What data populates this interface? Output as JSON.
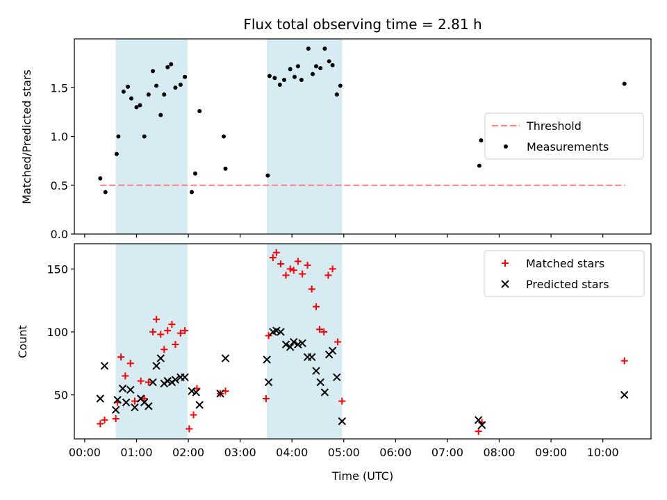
{
  "chart_data": [
    {
      "type": "scatter",
      "title": "Flux total observing time = 2.81 h",
      "xlabel": "",
      "ylabel": "Matched/Predicted stars",
      "xlim_hours": [
        -0.2,
        10.93
      ],
      "ylim": [
        0,
        2.0
      ],
      "yticks": [
        0.0,
        0.5,
        1.0,
        1.5
      ],
      "ytick_labels": [
        "0.0",
        "0.5",
        "1.0",
        "1.5"
      ],
      "grid": false,
      "legend_placement": "center-right",
      "shaded_intervals": [
        {
          "start": "00:36",
          "end": "01:59"
        },
        {
          "start": "03:31",
          "end": "04:58"
        }
      ],
      "threshold": {
        "name": "Threshold",
        "value": 0.5,
        "x_start": "00:18",
        "x_end": "10:26",
        "color": "#ff7f7f",
        "style": "dashed"
      },
      "series": [
        {
          "name": "Measurements",
          "color": "#000000",
          "marker": "dot",
          "points": [
            [
              "00:18",
              0.57
            ],
            [
              "00:24",
              0.43
            ],
            [
              "00:37",
              0.82
            ],
            [
              "00:39",
              1.0
            ],
            [
              "00:45",
              1.46
            ],
            [
              "00:50",
              1.51
            ],
            [
              "00:54",
              1.39
            ],
            [
              "01:00",
              1.3
            ],
            [
              "01:04",
              1.32
            ],
            [
              "01:09",
              1.0
            ],
            [
              "01:14",
              1.43
            ],
            [
              "01:19",
              1.67
            ],
            [
              "01:23",
              1.52
            ],
            [
              "01:28",
              1.22
            ],
            [
              "01:32",
              1.43
            ],
            [
              "01:36",
              1.71
            ],
            [
              "01:40",
              1.74
            ],
            [
              "01:45",
              1.5
            ],
            [
              "01:51",
              1.53
            ],
            [
              "01:56",
              1.61
            ],
            [
              "02:04",
              0.43
            ],
            [
              "02:08",
              0.62
            ],
            [
              "02:13",
              1.26
            ],
            [
              "02:41",
              1.0
            ],
            [
              "02:43",
              0.67
            ],
            [
              "03:32",
              0.6
            ],
            [
              "03:34",
              1.62
            ],
            [
              "03:40",
              1.6
            ],
            [
              "03:46",
              1.53
            ],
            [
              "03:51",
              1.58
            ],
            [
              "03:58",
              1.69
            ],
            [
              "04:03",
              1.61
            ],
            [
              "04:07",
              1.72
            ],
            [
              "04:11",
              1.58
            ],
            [
              "04:19",
              1.9
            ],
            [
              "04:24",
              1.64
            ],
            [
              "04:28",
              1.72
            ],
            [
              "04:33",
              1.7
            ],
            [
              "04:38",
              1.9
            ],
            [
              "04:43",
              1.77
            ],
            [
              "04:47",
              1.73
            ],
            [
              "04:52",
              1.43
            ],
            [
              "04:56",
              1.52
            ],
            [
              "07:37",
              0.7
            ],
            [
              "07:39",
              0.96
            ],
            [
              "10:25",
              1.54
            ]
          ]
        }
      ]
    },
    {
      "type": "scatter",
      "title": "",
      "xlabel": "Time (UTC)",
      "ylabel": "Count",
      "xlim_hours": [
        -0.2,
        10.93
      ],
      "ylim": [
        15,
        170
      ],
      "yticks": [
        50,
        100,
        150
      ],
      "ytick_labels": [
        "50",
        "100",
        "150"
      ],
      "xticks": [
        "00:00",
        "01:00",
        "02:00",
        "03:00",
        "04:00",
        "05:00",
        "06:00",
        "07:00",
        "08:00",
        "09:00",
        "10:00"
      ],
      "grid": false,
      "legend_placement": "top-right",
      "shaded_intervals": [
        {
          "start": "00:36",
          "end": "01:59"
        },
        {
          "start": "03:31",
          "end": "04:58"
        }
      ],
      "series": [
        {
          "name": "Matched stars",
          "color": "#ff0000",
          "marker": "plus",
          "points": [
            [
              "00:18",
              27
            ],
            [
              "00:23",
              30
            ],
            [
              "00:36",
              31
            ],
            [
              "00:38",
              44
            ],
            [
              "00:42",
              80
            ],
            [
              "00:47",
              65
            ],
            [
              "00:53",
              75
            ],
            [
              "00:58",
              45
            ],
            [
              "01:05",
              61
            ],
            [
              "01:09",
              47
            ],
            [
              "01:14",
              60
            ],
            [
              "01:19",
              100
            ],
            [
              "01:23",
              110
            ],
            [
              "01:28",
              98
            ],
            [
              "01:32",
              86
            ],
            [
              "01:36",
              101
            ],
            [
              "01:41",
              106
            ],
            [
              "01:45",
              90
            ],
            [
              "01:51",
              99
            ],
            [
              "01:56",
              101
            ],
            [
              "02:01",
              23
            ],
            [
              "02:06",
              34
            ],
            [
              "02:10",
              55
            ],
            [
              "02:37",
              51
            ],
            [
              "02:43",
              53
            ],
            [
              "03:30",
              47
            ],
            [
              "03:33",
              97
            ],
            [
              "03:38",
              159
            ],
            [
              "03:42",
              163
            ],
            [
              "03:47",
              154
            ],
            [
              "03:53",
              145
            ],
            [
              "03:58",
              150
            ],
            [
              "04:02",
              149
            ],
            [
              "04:07",
              156
            ],
            [
              "04:12",
              146
            ],
            [
              "04:18",
              153
            ],
            [
              "04:23",
              134
            ],
            [
              "04:28",
              120
            ],
            [
              "04:32",
              102
            ],
            [
              "04:37",
              100
            ],
            [
              "04:42",
              145
            ],
            [
              "04:47",
              150
            ],
            [
              "04:53",
              92
            ],
            [
              "04:58",
              45
            ],
            [
              "07:36",
              21
            ],
            [
              "07:40",
              28
            ],
            [
              "10:25",
              77
            ]
          ]
        },
        {
          "name": "Predicted stars",
          "color": "#000000",
          "marker": "x",
          "points": [
            [
              "00:18",
              47
            ],
            [
              "00:23",
              73
            ],
            [
              "00:36",
              38
            ],
            [
              "00:38",
              46
            ],
            [
              "00:44",
              55
            ],
            [
              "00:48",
              44
            ],
            [
              "00:53",
              54
            ],
            [
              "00:58",
              40
            ],
            [
              "01:05",
              47
            ],
            [
              "01:09",
              44
            ],
            [
              "01:14",
              41
            ],
            [
              "01:19",
              60
            ],
            [
              "01:23",
              73
            ],
            [
              "01:28",
              79
            ],
            [
              "01:32",
              59
            ],
            [
              "01:36",
              61
            ],
            [
              "01:41",
              60
            ],
            [
              "01:45",
              62
            ],
            [
              "01:51",
              64
            ],
            [
              "01:56",
              64
            ],
            [
              "02:04",
              53
            ],
            [
              "02:09",
              52
            ],
            [
              "02:13",
              42
            ],
            [
              "02:37",
              51
            ],
            [
              "02:43",
              79
            ],
            [
              "03:31",
              78
            ],
            [
              "03:33",
              60
            ],
            [
              "03:38",
              100
            ],
            [
              "03:42",
              101
            ],
            [
              "03:47",
              100
            ],
            [
              "03:53",
              90
            ],
            [
              "03:58",
              88
            ],
            [
              "04:02",
              92
            ],
            [
              "04:07",
              90
            ],
            [
              "04:12",
              91
            ],
            [
              "04:18",
              80
            ],
            [
              "04:23",
              80
            ],
            [
              "04:28",
              69
            ],
            [
              "04:33",
              60
            ],
            [
              "04:38",
              52
            ],
            [
              "04:43",
              82
            ],
            [
              "04:47",
              85
            ],
            [
              "04:52",
              64
            ],
            [
              "04:58",
              29
            ],
            [
              "07:36",
              30
            ],
            [
              "07:40",
              26
            ],
            [
              "10:25",
              50
            ]
          ]
        }
      ]
    }
  ],
  "colors": {
    "shade": "#add8e6",
    "shade_opacity": 0.5,
    "axis": "#000000"
  }
}
